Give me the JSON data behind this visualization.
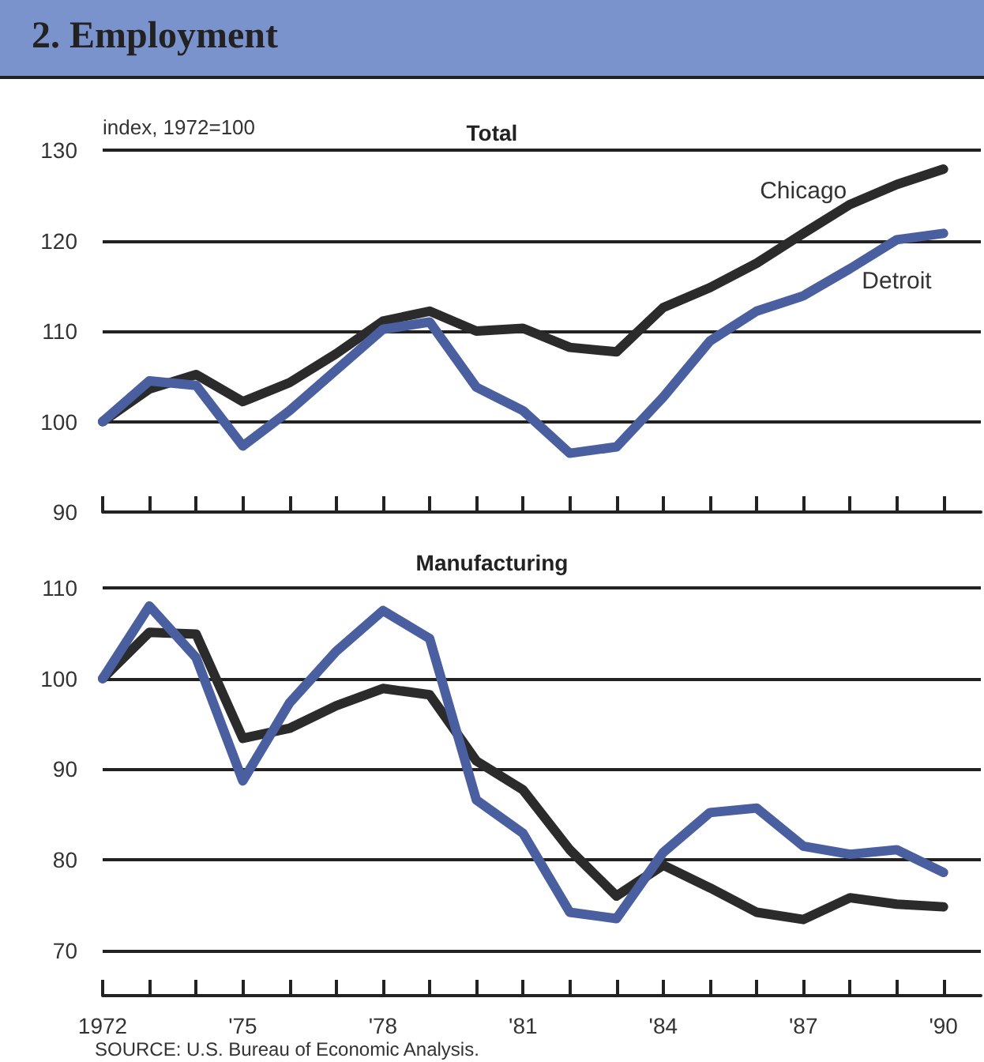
{
  "chart_data": [
    {
      "type": "line",
      "title": "2. Employment",
      "subtitle": "Total",
      "ylabel": "index, 1972=100",
      "x": [
        1972,
        1973,
        1974,
        1975,
        1976,
        1977,
        1978,
        1979,
        1980,
        1981,
        1982,
        1983,
        1984,
        1985,
        1986,
        1987,
        1988,
        1989,
        1990
      ],
      "series": [
        {
          "name": "Chicago",
          "color": "#2b2b2b",
          "values": [
            100,
            103.6,
            105.2,
            102.2,
            104.3,
            107.5,
            111.1,
            112.2,
            110.0,
            110.3,
            108.2,
            107.7,
            112.6,
            114.8,
            117.5,
            120.8,
            124.0,
            126.2,
            127.9
          ]
        },
        {
          "name": "Detroit",
          "color": "#4a5fa0",
          "values": [
            100,
            104.5,
            104.0,
            97.3,
            101.2,
            105.7,
            110.2,
            111.0,
            103.8,
            101.2,
            96.5,
            97.2,
            102.7,
            108.9,
            112.2,
            113.9,
            116.9,
            120.1,
            120.8
          ]
        }
      ],
      "xlim": [
        1972,
        1990.8
      ],
      "xticks": [
        {
          "value": 1972,
          "label": null
        },
        {
          "value": 1973,
          "label": null
        },
        {
          "value": 1974,
          "label": null
        },
        {
          "value": 1975,
          "label": null
        },
        {
          "value": 1976,
          "label": null
        },
        {
          "value": 1977,
          "label": null
        },
        {
          "value": 1978,
          "label": null
        },
        {
          "value": 1979,
          "label": null
        },
        {
          "value": 1980,
          "label": null
        },
        {
          "value": 1981,
          "label": null
        },
        {
          "value": 1982,
          "label": null
        },
        {
          "value": 1983,
          "label": null
        },
        {
          "value": 1984,
          "label": null
        },
        {
          "value": 1985,
          "label": null
        },
        {
          "value": 1986,
          "label": null
        },
        {
          "value": 1987,
          "label": null
        },
        {
          "value": 1988,
          "label": null
        },
        {
          "value": 1989,
          "label": null
        },
        {
          "value": 1990,
          "label": null
        }
      ],
      "ylim": [
        90,
        130
      ],
      "yticks": [
        90,
        100,
        110,
        120,
        130
      ],
      "tick_labels": "y",
      "grid": "y",
      "legend": false,
      "marker": "none",
      "line_style": "solid"
    },
    {
      "type": "line",
      "title": "Manufacturing",
      "annotations": [
        "SOURCE: U.S. Bureau of Economic Analysis."
      ],
      "x": [
        1972,
        1973,
        1974,
        1975,
        1976,
        1977,
        1978,
        1979,
        1980,
        1981,
        1982,
        1983,
        1984,
        1985,
        1986,
        1987,
        1988,
        1989,
        1990
      ],
      "series": [
        {
          "color": "#2b2b2b",
          "values": [
            100,
            105.1,
            104.9,
            93.4,
            94.5,
            97.0,
            98.9,
            98.2,
            90.9,
            87.7,
            81.1,
            76.0,
            79.4,
            76.9,
            74.2,
            73.4,
            75.8,
            75.1,
            74.8
          ]
        },
        {
          "color": "#4a5fa0",
          "values": [
            100,
            108.0,
            102.3,
            88.7,
            97.3,
            103.0,
            107.5,
            104.4,
            86.6,
            82.9,
            74.2,
            73.5,
            80.8,
            85.2,
            85.7,
            81.5,
            80.6,
            81.1,
            78.6
          ]
        }
      ],
      "xlim": [
        1972,
        1990.8
      ],
      "xticks": [
        {
          "value": 1972,
          "label": "1972"
        },
        {
          "value": 1973,
          "label": null
        },
        {
          "value": 1974,
          "label": null
        },
        {
          "value": 1975,
          "label": "'75"
        },
        {
          "value": 1976,
          "label": null
        },
        {
          "value": 1977,
          "label": null
        },
        {
          "value": 1978,
          "label": "'78"
        },
        {
          "value": 1979,
          "label": null
        },
        {
          "value": 1980,
          "label": null
        },
        {
          "value": 1981,
          "label": "'81"
        },
        {
          "value": 1982,
          "label": null
        },
        {
          "value": 1983,
          "label": null
        },
        {
          "value": 1984,
          "label": "'84"
        },
        {
          "value": 1985,
          "label": null
        },
        {
          "value": 1986,
          "label": null
        },
        {
          "value": 1987,
          "label": "'87"
        },
        {
          "value": 1988,
          "label": null
        },
        {
          "value": 1989,
          "label": null
        },
        {
          "value": 1990,
          "label": "'90"
        }
      ],
      "ylim": [
        65,
        110
      ],
      "yticks": [
        70,
        80,
        90,
        100,
        110
      ],
      "grid": "y",
      "legend": false,
      "marker": "none",
      "line_style": "solid"
    }
  ]
}
